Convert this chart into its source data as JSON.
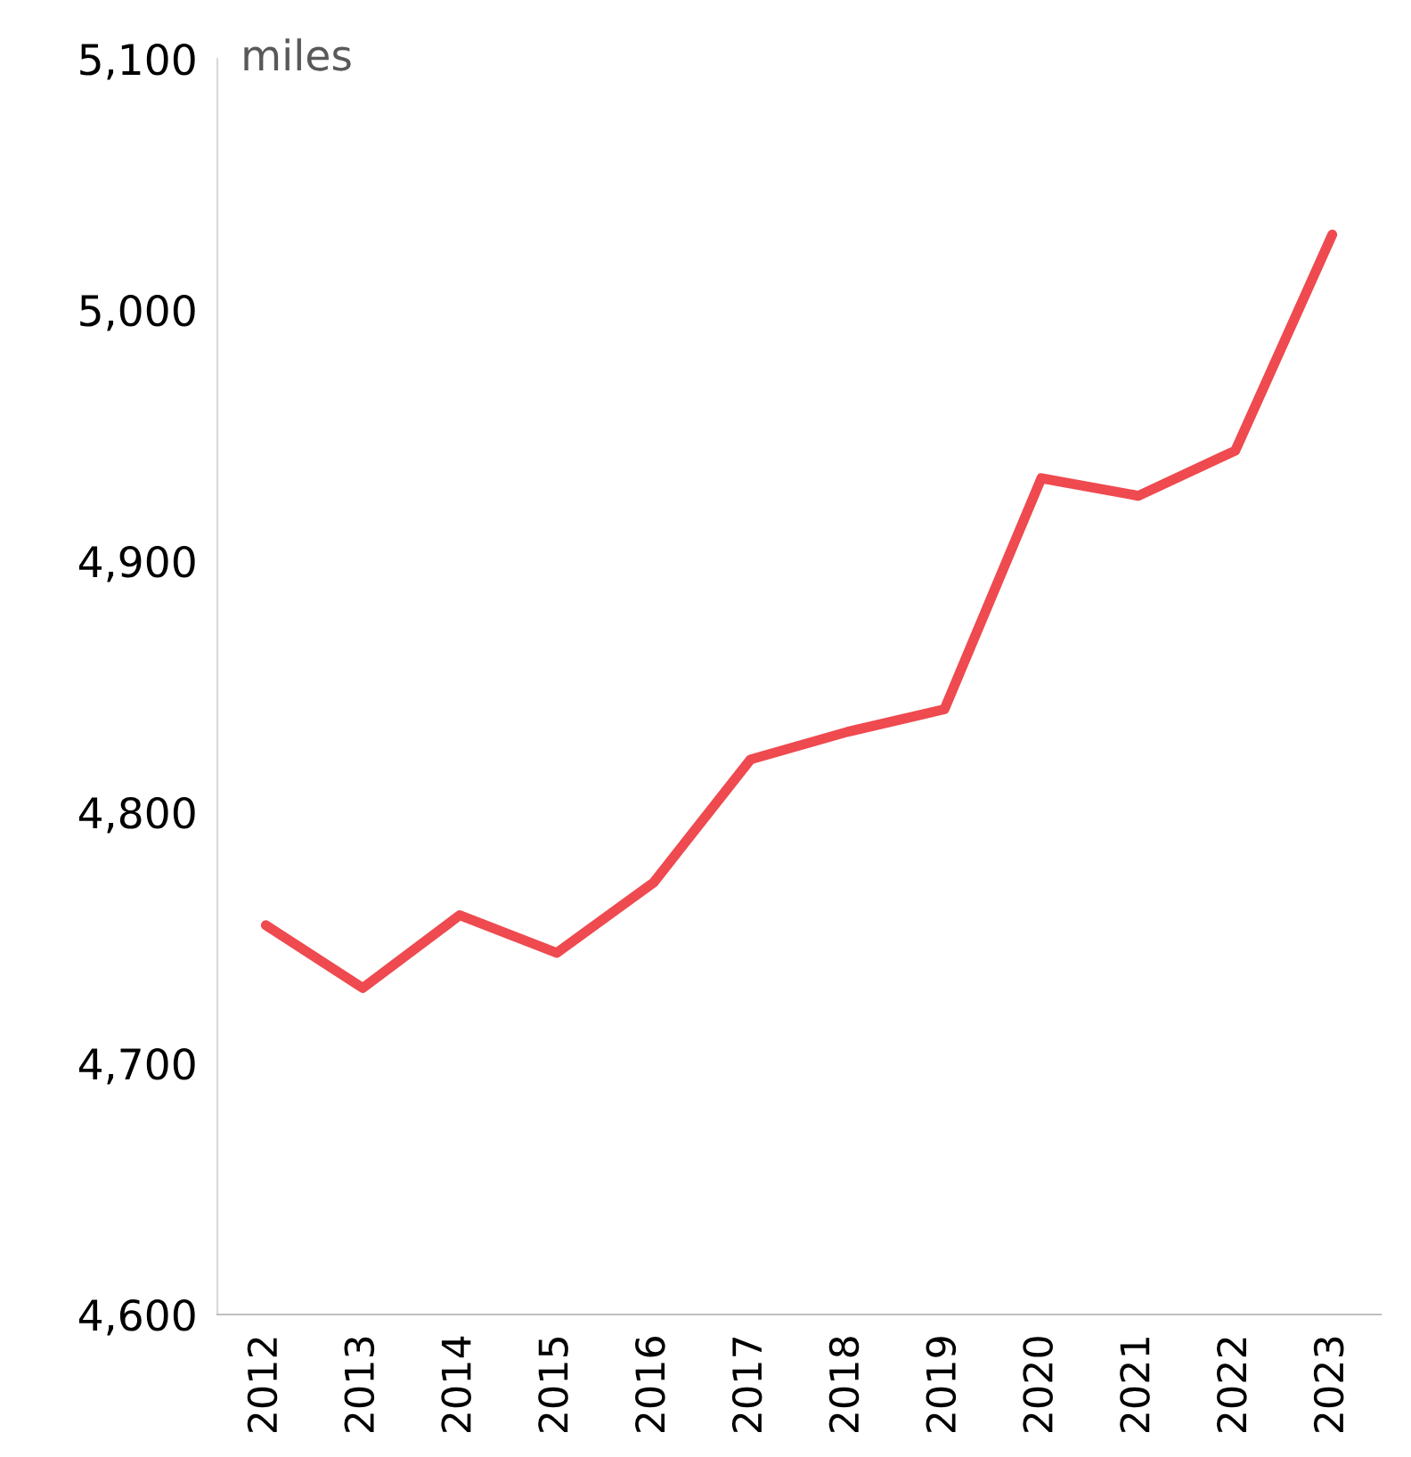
{
  "chart_data": {
    "type": "line",
    "ylabel": "miles",
    "categories": [
      "2012",
      "2013",
      "2014",
      "2015",
      "2016",
      "2017",
      "2018",
      "2019",
      "2020",
      "2021",
      "2022",
      "2023"
    ],
    "series": [
      {
        "color": "#ee4a4f",
        "values": [
          4755,
          4730,
          4759,
          4744,
          4772,
          4821,
          4832,
          4841,
          4933,
          4926,
          4944,
          5030
        ]
      }
    ],
    "ylim": [
      4600,
      5100
    ],
    "yticks": [
      {
        "value": 4600,
        "label": "4,600"
      },
      {
        "value": 4700,
        "label": "4,700"
      },
      {
        "value": 4800,
        "label": "4,800"
      },
      {
        "value": 4900,
        "label": "4,900"
      },
      {
        "value": 5000,
        "label": "5,000"
      },
      {
        "value": 5100,
        "label": "5,100"
      }
    ],
    "grid": false,
    "marker": "none",
    "line_style": "solid"
  }
}
